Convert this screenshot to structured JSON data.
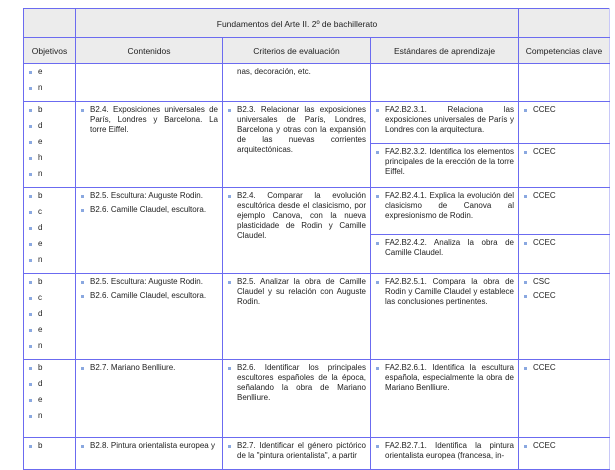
{
  "title": "Fundamentos del Arte II. 2º de bachillerato",
  "headers": [
    "Objetivos",
    "Contenidos",
    "Criterios de evaluación",
    "Estándares de aprendizaje",
    "Competencias clave"
  ],
  "rows": [
    {
      "objetivos": [
        "e",
        "n"
      ],
      "contenidos": [],
      "criterio": "nas, decoración, etc.",
      "criterio_continued": true,
      "estandares": [
        {
          "text": "",
          "competencias": []
        }
      ]
    },
    {
      "objetivos": [
        "b",
        "d",
        "e",
        "h",
        "n"
      ],
      "contenidos": [
        "B2.4. Exposiciones universales de París, Londres y Barcelona. La torre Eiffel."
      ],
      "criterio": "B2.3. Relacionar las exposiciones universales de París, Londres, Barcelona y otras con la expansión de las nuevas corrientes arquitectónicas.",
      "estandares": [
        {
          "text": "FA2.B2.3.1. Relaciona las exposiciones universales de París y Londres con la arquitectura.",
          "competencias": [
            "CCEC"
          ]
        },
        {
          "text": "FA2.B2.3.2. Identifica los elementos principales de la erección de la torre Eiffel.",
          "competencias": [
            "CCEC"
          ]
        }
      ]
    },
    {
      "objetivos": [
        "b",
        "c",
        "d",
        "e",
        "n"
      ],
      "contenidos": [
        "B2.5. Escultura: Auguste Rodin.",
        "B2.6. Camille Claudel, escultora."
      ],
      "criterio": "B2.4. Comparar la evolución escultórica desde el clasicismo, por ejemplo Canova, con la nueva plasticidade de Rodin y Camille Claudel.",
      "estandares": [
        {
          "text": "FA2.B2.4.1. Explica la evolución del clasicismo de Canova al expresionismo de Rodin.",
          "competencias": [
            "CCEC"
          ]
        },
        {
          "text": "FA2.B2.4.2. Analiza la obra de Camille Claudel.",
          "competencias": [
            "CCEC"
          ]
        }
      ]
    },
    {
      "objetivos": [
        "b",
        "c",
        "d",
        "e",
        "n"
      ],
      "contenidos": [
        "B2.5. Escultura: Auguste Rodin.",
        "B2.6. Camille Claudel, escultora."
      ],
      "criterio": "B2.5. Analizar la obra de Camille Claudel y su relación con Auguste Rodin.",
      "estandares": [
        {
          "text": "FA2.B2.5.1. Compara la obra de Rodin y Camille Claudel y establece las conclusiones pertinentes.",
          "competencias": [
            "CSC",
            "CCEC"
          ]
        }
      ]
    },
    {
      "objetivos": [
        "b",
        "d",
        "e",
        "n"
      ],
      "contenidos": [
        "B2.7. Mariano Benlliure."
      ],
      "criterio": "B2.6. Identificar los principales escultores españoles de la época, señalando la obra de Mariano Benlliure.",
      "estandares": [
        {
          "text": "FA2.B2.6.1. Identifica la escultura española, especialmente la obra de Mariano Benlliure.",
          "competencias": [
            "CCEC"
          ]
        }
      ]
    },
    {
      "objetivos": [
        "b"
      ],
      "contenidos": [
        "B2.8. Pintura orientalista europea y"
      ],
      "criterio": "B2.7. Identificar el género pictórico de la \"pintura orientalista\", a partir",
      "estandares": [
        {
          "text": "FA2.B2.7.1. Identifica la pintura orientalista europea (francesa, in-",
          "competencias": [
            "CCEC"
          ]
        }
      ]
    }
  ],
  "colors": {
    "border": "#6b6bf0",
    "header_bg": "#ececec",
    "bullet": "#8aa8e0"
  }
}
